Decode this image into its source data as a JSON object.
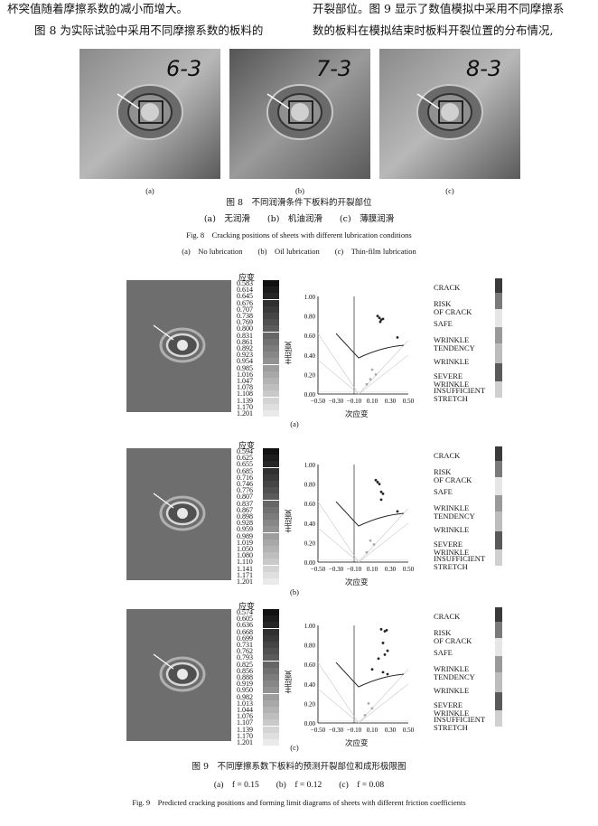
{
  "text": {
    "left_line1": "杯突值随着摩擦系数的减小而增大。",
    "left_line2": "图 8 为实际试验中采用不同摩擦系数的板料的",
    "right_line1": "开裂部位。图 9 显示了数值模拟中采用不同摩擦系",
    "right_line2": "数的板料在模拟结束时板料开裂位置的分布情况,"
  },
  "fig8": {
    "photos": [
      {
        "mark": "6-3",
        "label": "(a)"
      },
      {
        "mark": "7-3",
        "label": "(b)"
      },
      {
        "mark": "8-3",
        "label": "(c)"
      }
    ],
    "caption_cn": "图 8　不同润滑条件下板料的开裂部位",
    "sub_cn": "(a)　无润滑　　(b)　机油润滑　　(c)　薄膜润滑",
    "caption_en": "Fig. 8　Cracking positions of sheets with different lubrication conditions",
    "sub_en": "(a)　No lubrication　　(b)　Oil lubrication　　(c)　Thin-film lubrication"
  },
  "fig9": {
    "scale_title": "应变",
    "ylabel": "主应变",
    "xlabel": "次应变",
    "xticks": [
      "−0.50",
      "−0.30",
      "−0.10",
      "0.10",
      "0.30",
      "0.50"
    ],
    "yticks": [
      "1.00",
      "0.80",
      "0.60",
      "0.40",
      "0.20",
      "0.00"
    ],
    "legend": [
      "CRACK",
      "RISK\nOF CRACK",
      "SAFE",
      "WRINKLE\nTENDENCY",
      "WRINKLE",
      "SEVERE\nWRINKLE",
      "INSUFFICIENT\nSTRETCH"
    ],
    "panels": [
      {
        "label": "(a)",
        "scale": [
          "0.583",
          "0.614",
          "0.645",
          "0.676",
          "0.707",
          "0.738",
          "0.769",
          "0.800",
          "0.831",
          "0.861",
          "0.892",
          "0.923",
          "0.954",
          "0.985",
          "1.016",
          "1.047",
          "1.078",
          "1.108",
          "1.139",
          "1.170",
          "1.201"
        ]
      },
      {
        "label": "(b)",
        "scale": [
          "0.594",
          "0.625",
          "0.655",
          "0.685",
          "0.716",
          "0.746",
          "0.776",
          "0.807",
          "0.837",
          "0.867",
          "0.898",
          "0.928",
          "0.959",
          "0.989",
          "1.019",
          "1.050",
          "1.080",
          "1.110",
          "1.141",
          "1.171",
          "1.201"
        ]
      },
      {
        "label": "(c)",
        "scale": [
          "0.574",
          "0.605",
          "0.636",
          "0.668",
          "0.699",
          "0.731",
          "0.762",
          "0.793",
          "0.825",
          "0.856",
          "0.888",
          "0.919",
          "0.950",
          "0.982",
          "1.013",
          "1.044",
          "1.076",
          "1.107",
          "1.139",
          "1.170",
          "1.201"
        ]
      }
    ],
    "caption_cn": "图 9　不同摩擦系数下板料的预测开裂部位和成形极限图",
    "sub_cn": "(a)　f = 0.15　　(b)　f = 0.12　　(c)　f = 0.08",
    "caption_en": "Fig. 9　Predicted cracking positions and forming limit diagrams of sheets with different friction coefficients"
  },
  "chart_data": [
    {
      "type": "scatter",
      "xlabel": "次应变",
      "ylabel": "主应变",
      "xlim": [
        -0.5,
        0.5
      ],
      "ylim": [
        0,
        1.0
      ],
      "series": [
        {
          "values": [
            [
              0.16,
              0.8
            ],
            [
              0.18,
              0.78
            ],
            [
              0.2,
              0.76
            ],
            [
              0.22,
              0.77
            ],
            [
              0.19,
              0.74
            ],
            [
              0.38,
              0.58
            ],
            [
              0.1,
              0.25
            ],
            [
              0.14,
              0.2
            ],
            [
              0.08,
              0.15
            ],
            [
              0.04,
              0.1
            ]
          ]
        }
      ]
    },
    {
      "type": "scatter",
      "xlabel": "次应变",
      "ylabel": "主应变",
      "xlim": [
        -0.5,
        0.5
      ],
      "ylim": [
        0,
        1.0
      ],
      "series": [
        {
          "values": [
            [
              0.14,
              0.84
            ],
            [
              0.16,
              0.82
            ],
            [
              0.18,
              0.8
            ],
            [
              0.2,
              0.72
            ],
            [
              0.22,
              0.7
            ],
            [
              0.2,
              0.64
            ],
            [
              0.38,
              0.52
            ],
            [
              0.08,
              0.22
            ],
            [
              0.12,
              0.18
            ],
            [
              0.04,
              0.1
            ]
          ]
        }
      ]
    },
    {
      "type": "scatter",
      "xlabel": "次应变",
      "ylabel": "主应变",
      "xlim": [
        -0.5,
        0.5
      ],
      "ylim": [
        0,
        1.0
      ],
      "series": [
        {
          "values": [
            [
              0.2,
              0.96
            ],
            [
              0.24,
              0.94
            ],
            [
              0.26,
              0.95
            ],
            [
              0.22,
              0.82
            ],
            [
              0.27,
              0.74
            ],
            [
              0.24,
              0.7
            ],
            [
              0.17,
              0.66
            ],
            [
              0.1,
              0.55
            ],
            [
              0.22,
              0.52
            ],
            [
              0.27,
              0.5
            ],
            [
              0.06,
              0.2
            ],
            [
              0.1,
              0.15
            ],
            [
              0.02,
              0.08
            ]
          ]
        }
      ]
    }
  ]
}
